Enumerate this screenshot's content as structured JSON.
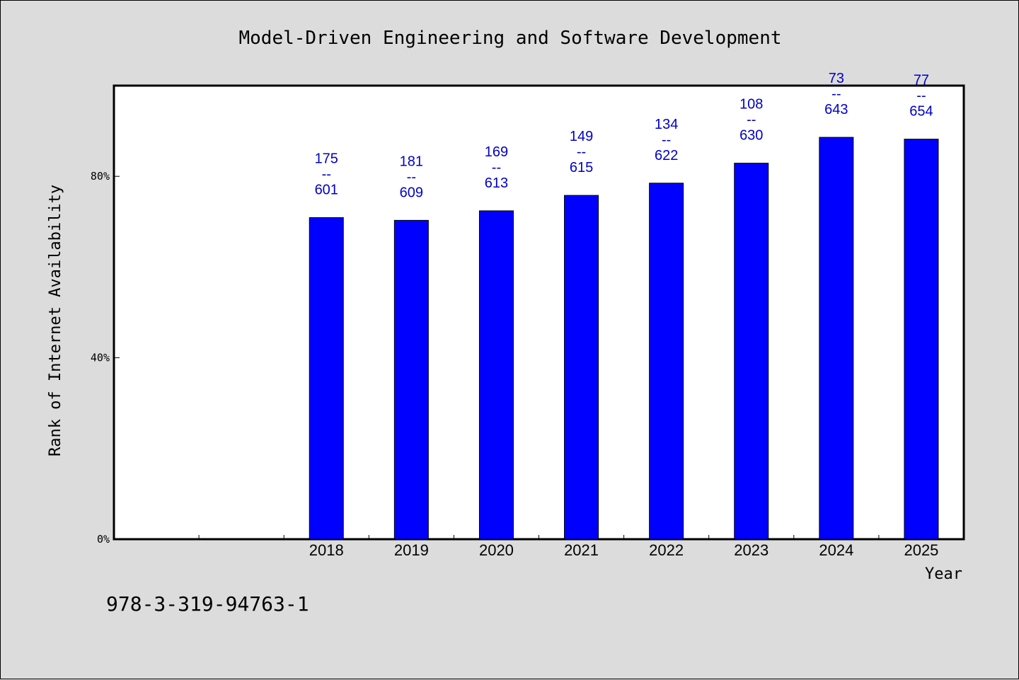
{
  "chart_data": {
    "type": "bar",
    "title": "Model-Driven Engineering and Software Development",
    "xlabel": "Year",
    "ylabel": "Rank of Internet Availability",
    "ylim": [
      0,
      100
    ],
    "yticks": [
      {
        "value": 0,
        "label": "0%"
      },
      {
        "value": 40,
        "label": "40%"
      },
      {
        "value": 80,
        "label": "80%"
      }
    ],
    "grid": false,
    "categories": [
      "",
      "",
      "2018",
      "2019",
      "2020",
      "2021",
      "2022",
      "2023",
      "2024",
      "2025"
    ],
    "series": [
      {
        "color": "#0000ff",
        "values": [
          null,
          null,
          70.9,
          70.3,
          72.4,
          75.8,
          78.5,
          82.9,
          88.6,
          88.2
        ],
        "labels": [
          null,
          null,
          [
            "175",
            "--",
            "601"
          ],
          [
            "181",
            "--",
            "609"
          ],
          [
            "169",
            "--",
            "613"
          ],
          [
            "149",
            "--",
            "615"
          ],
          [
            "134",
            "--",
            "622"
          ],
          [
            "108",
            "--",
            "630"
          ],
          [
            "73",
            "--",
            "643"
          ],
          [
            "77",
            "--",
            "654"
          ]
        ]
      }
    ]
  },
  "footer": {
    "isbn": "978-3-319-94763-1"
  }
}
